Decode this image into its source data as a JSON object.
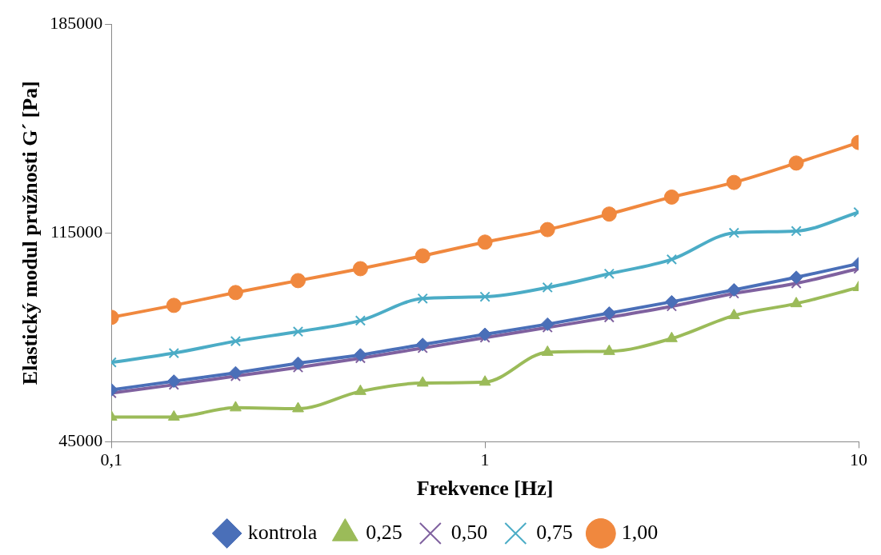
{
  "chart_data": {
    "type": "line",
    "xlabel": "Frekvence [Hz]",
    "ylabel": "Elastický modul pružnosti G´ [Pa]",
    "log": "x",
    "legend": "bottom",
    "line_style": "solid",
    "x": [
      0.1,
      0.147,
      0.215,
      0.316,
      0.464,
      0.681,
      1,
      1.47,
      2.15,
      3.16,
      4.64,
      6.81,
      10
    ],
    "xlim": [
      0.1,
      10
    ],
    "xticks": [
      {
        "value": 0.1,
        "label": "0,1"
      },
      1,
      10
    ],
    "ylim": [
      45000,
      185000
    ],
    "yticks": [
      45000,
      115000,
      185000
    ],
    "series": [
      {
        "name": "kontrola",
        "color": "#4a6fb8",
        "marker": "diamond",
        "values": [
          62400,
          65300,
          68100,
          71300,
          74100,
          77600,
          81000,
          84400,
          88100,
          91900,
          95900,
          100100,
          104700
        ]
      },
      {
        "name": "0,25",
        "color": "#9bbb59",
        "marker": "triangle",
        "values": [
          53300,
          53300,
          56400,
          56100,
          61900,
          64700,
          65000,
          75000,
          75300,
          79600,
          87300,
          91300,
          96700
        ]
      },
      {
        "name": "0,50",
        "color": "#7f619f",
        "marker": "cross",
        "values": [
          61300,
          64100,
          67000,
          69900,
          73000,
          76400,
          79900,
          83300,
          86700,
          90400,
          94700,
          98100,
          103000
        ]
      },
      {
        "name": "0,75",
        "color": "#4bacc6",
        "marker": "cross",
        "values": [
          71600,
          74700,
          78700,
          81900,
          85600,
          93000,
          93600,
          96700,
          101300,
          106100,
          115000,
          115600,
          121900
        ]
      },
      {
        "name": "1,00",
        "color": "#f0883e",
        "marker": "circle",
        "values": [
          86700,
          90700,
          95000,
          99000,
          103000,
          107300,
          111900,
          116100,
          121300,
          127000,
          131900,
          138400,
          145300
        ]
      }
    ]
  }
}
